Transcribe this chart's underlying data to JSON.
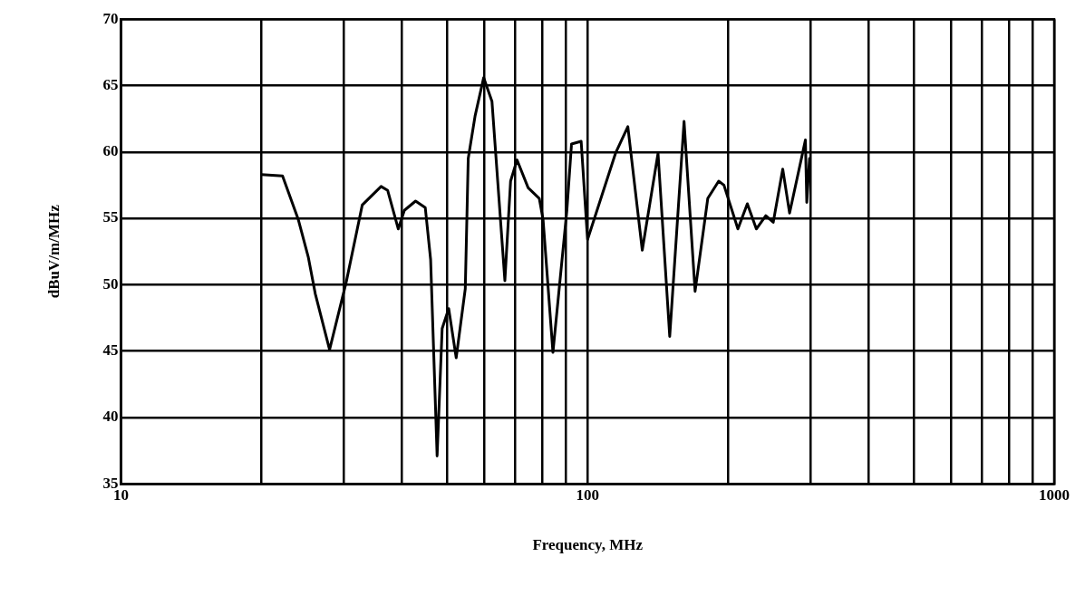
{
  "chart_data": {
    "type": "line",
    "xlabel": "Frequency, MHz",
    "ylabel": "dBuV/m/MHz",
    "log": "x",
    "grid": true,
    "legend": false,
    "marker": "none",
    "line_style": "solid",
    "xlim": [
      10,
      1000
    ],
    "ylim": [
      35,
      70
    ],
    "xticks": [
      10,
      {
        "value": 20,
        "label": null
      },
      {
        "value": 30,
        "label": null
      },
      {
        "value": 40,
        "label": null
      },
      {
        "value": 50,
        "label": null
      },
      {
        "value": 60,
        "label": null
      },
      {
        "value": 70,
        "label": null
      },
      {
        "value": 80,
        "label": null
      },
      {
        "value": 90,
        "label": null
      },
      100,
      {
        "value": 200,
        "label": null
      },
      {
        "value": 300,
        "label": null
      },
      {
        "value": 400,
        "label": null
      },
      {
        "value": 500,
        "label": null
      },
      {
        "value": 600,
        "label": null
      },
      {
        "value": 700,
        "label": null
      },
      {
        "value": 800,
        "label": null
      },
      {
        "value": 900,
        "label": null
      },
      1000
    ],
    "yticks": [
      35,
      40,
      45,
      50,
      55,
      60,
      65,
      70
    ],
    "series": [
      {
        "color": "#000000",
        "x": [
          20,
          22.2,
          24,
          25.2,
          26.1,
          28,
          30.4,
          32.9,
          36.1,
          37.3,
          39.3,
          40.5,
          42.8,
          44.9,
          46.1,
          47.6,
          48.8,
          50.4,
          52.3,
          54.7,
          55.5,
          57.4,
          59.9,
          62.4,
          66.5,
          68.4,
          70.6,
          74.6,
          78.8,
          80.3,
          84.3,
          90.3,
          92.4,
          96.9,
          100,
          114.8,
          122,
          131,
          141.6,
          150,
          161,
          170,
          181,
          191,
          196,
          210,
          220,
          230,
          241,
          250,
          262,
          271,
          293,
          295,
          299
        ],
        "values": [
          58.3,
          58.2,
          54.9,
          52.1,
          49.3,
          45.1,
          50.2,
          56,
          57.4,
          57.1,
          54.2,
          55.6,
          56.3,
          55.8,
          51.9,
          37.1,
          46.7,
          48.2,
          44.5,
          49.7,
          59.5,
          62.7,
          65.6,
          63.8,
          50.3,
          57.8,
          59.4,
          57.3,
          56.5,
          54.9,
          44.9,
          55.6,
          60.6,
          60.8,
          53.4,
          59.9,
          61.9,
          52.6,
          59.9,
          46.1,
          62.3,
          49.5,
          56.5,
          57.8,
          57.5,
          54.2,
          56.1,
          54.2,
          55.2,
          54.7,
          58.7,
          55.4,
          60.9,
          56.2,
          59.5
        ]
      }
    ]
  }
}
